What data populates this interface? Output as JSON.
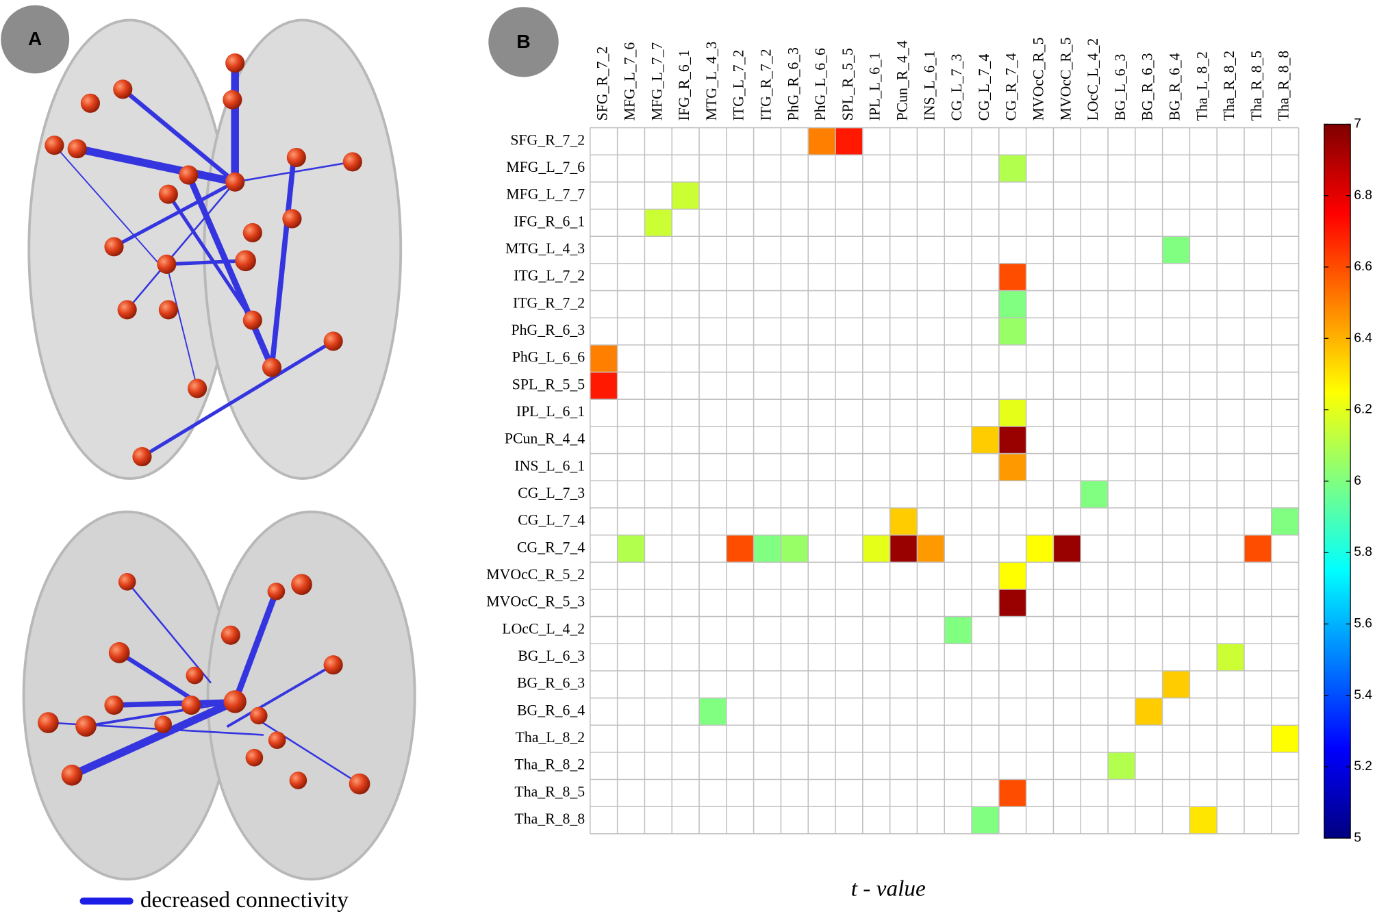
{
  "chart_data": {
    "type": "heatmap",
    "panel_labels": [
      "A",
      "B"
    ],
    "legend_label": "decreased connectivity",
    "x_label": "t - value",
    "colormap": "jet",
    "rows": [
      "SFG_R_7_2",
      "MFG_L_7_6",
      "MFG_L_7_7",
      "IFG_R_6_1",
      "MTG_L_4_3",
      "ITG_L_7_2",
      "ITG_R_7_2",
      "PhG_R_6_3",
      "PhG_L_6_6",
      "SPL_R_5_5",
      "IPL_L_6_1",
      "PCun_R_4_4",
      "INS_L_6_1",
      "CG_L_7_3",
      "CG_L_7_4",
      "CG_R_7_4",
      "MVOcC_R_5_2",
      "MVOcC_R_5_3",
      "LOcC_L_4_2",
      "BG_L_6_3",
      "BG_R_6_3",
      "BG_R_6_4",
      "Tha_L_8_2",
      "Tha_R_8_2",
      "Tha_R_8_5",
      "Tha_R_8_8"
    ],
    "columns": [
      "SFG_R_7_2",
      "MFG_L_7_6",
      "MFG_L_7_7",
      "IFG_R_6_1",
      "MTG_L_4_3",
      "ITG_L_7_2",
      "ITG_R_7_2",
      "PhG_R_6_3",
      "PhG_L_6_6",
      "SPL_R_5_5",
      "IPL_L_6_1",
      "PCun_R_4_4",
      "INS_L_6_1",
      "CG_L_7_3",
      "CG_L_7_4",
      "CG_R_7_4",
      "MVOcC_R_5",
      "MVOcC_R_5",
      "LOcC_L_4_2",
      "BG_L_6_3",
      "BG_R_6_3",
      "BG_R_6_4",
      "Tha_L_8_2",
      "Tha_R_8_2",
      "Tha_R_8_5",
      "Tha_R_8_8"
    ],
    "values": [
      [
        null,
        null,
        null,
        null,
        null,
        null,
        null,
        null,
        6.5,
        6.7,
        null,
        null,
        null,
        null,
        null,
        null,
        null,
        null,
        null,
        null,
        null,
        null,
        null,
        null,
        null,
        null
      ],
      [
        null,
        null,
        null,
        null,
        null,
        null,
        null,
        null,
        null,
        null,
        null,
        null,
        null,
        null,
        null,
        6.1,
        null,
        null,
        null,
        null,
        null,
        null,
        null,
        null,
        null,
        null
      ],
      [
        null,
        null,
        null,
        6.15,
        null,
        null,
        null,
        null,
        null,
        null,
        null,
        null,
        null,
        null,
        null,
        null,
        null,
        null,
        null,
        null,
        null,
        null,
        null,
        null,
        null,
        null
      ],
      [
        null,
        null,
        6.15,
        null,
        null,
        null,
        null,
        null,
        null,
        null,
        null,
        null,
        null,
        null,
        null,
        null,
        null,
        null,
        null,
        null,
        null,
        null,
        null,
        null,
        null,
        null
      ],
      [
        null,
        null,
        null,
        null,
        null,
        null,
        null,
        null,
        null,
        null,
        null,
        null,
        null,
        null,
        null,
        null,
        null,
        null,
        null,
        null,
        null,
        6.0,
        null,
        null,
        null,
        null
      ],
      [
        null,
        null,
        null,
        null,
        null,
        null,
        null,
        null,
        null,
        null,
        null,
        null,
        null,
        null,
        null,
        6.6,
        null,
        null,
        null,
        null,
        null,
        null,
        null,
        null,
        null,
        null
      ],
      [
        null,
        null,
        null,
        null,
        null,
        null,
        null,
        null,
        null,
        null,
        null,
        null,
        null,
        null,
        null,
        6.0,
        null,
        null,
        null,
        null,
        null,
        null,
        null,
        null,
        null,
        null
      ],
      [
        null,
        null,
        null,
        null,
        null,
        null,
        null,
        null,
        null,
        null,
        null,
        null,
        null,
        null,
        null,
        6.05,
        null,
        null,
        null,
        null,
        null,
        null,
        null,
        null,
        null,
        null
      ],
      [
        6.5,
        null,
        null,
        null,
        null,
        null,
        null,
        null,
        null,
        null,
        null,
        null,
        null,
        null,
        null,
        null,
        null,
        null,
        null,
        null,
        null,
        null,
        null,
        null,
        null,
        null
      ],
      [
        6.7,
        null,
        null,
        null,
        null,
        null,
        null,
        null,
        null,
        null,
        null,
        null,
        null,
        null,
        null,
        null,
        null,
        null,
        null,
        null,
        null,
        null,
        null,
        null,
        null,
        null
      ],
      [
        null,
        null,
        null,
        null,
        null,
        null,
        null,
        null,
        null,
        null,
        null,
        null,
        null,
        null,
        null,
        6.2,
        null,
        null,
        null,
        null,
        null,
        null,
        null,
        null,
        null,
        null
      ],
      [
        null,
        null,
        null,
        null,
        null,
        null,
        null,
        null,
        null,
        null,
        null,
        null,
        null,
        null,
        6.35,
        6.95,
        null,
        null,
        null,
        null,
        null,
        null,
        null,
        null,
        null,
        null
      ],
      [
        null,
        null,
        null,
        null,
        null,
        null,
        null,
        null,
        null,
        null,
        null,
        null,
        null,
        null,
        null,
        6.45,
        null,
        null,
        null,
        null,
        null,
        null,
        null,
        null,
        null,
        null
      ],
      [
        null,
        null,
        null,
        null,
        null,
        null,
        null,
        null,
        null,
        null,
        null,
        null,
        null,
        null,
        null,
        null,
        null,
        null,
        6.0,
        null,
        null,
        null,
        null,
        null,
        null,
        null
      ],
      [
        null,
        null,
        null,
        null,
        null,
        null,
        null,
        null,
        null,
        null,
        null,
        6.35,
        null,
        null,
        null,
        null,
        null,
        null,
        null,
        null,
        null,
        null,
        null,
        null,
        null,
        6.0
      ],
      [
        null,
        6.1,
        null,
        null,
        null,
        6.6,
        6.0,
        6.05,
        null,
        null,
        6.2,
        6.95,
        6.45,
        null,
        null,
        null,
        6.25,
        6.95,
        null,
        null,
        null,
        null,
        null,
        null,
        6.6,
        null
      ],
      [
        null,
        null,
        null,
        null,
        null,
        null,
        null,
        null,
        null,
        null,
        null,
        null,
        null,
        null,
        null,
        6.25,
        null,
        null,
        null,
        null,
        null,
        null,
        null,
        null,
        null,
        null
      ],
      [
        null,
        null,
        null,
        null,
        null,
        null,
        null,
        null,
        null,
        null,
        null,
        null,
        null,
        null,
        null,
        6.95,
        null,
        null,
        null,
        null,
        null,
        null,
        null,
        null,
        null,
        null
      ],
      [
        null,
        null,
        null,
        null,
        null,
        null,
        null,
        null,
        null,
        null,
        null,
        null,
        null,
        6.0,
        null,
        null,
        null,
        null,
        null,
        null,
        null,
        null,
        null,
        null,
        null,
        null
      ],
      [
        null,
        null,
        null,
        null,
        null,
        null,
        null,
        null,
        null,
        null,
        null,
        null,
        null,
        null,
        null,
        null,
        null,
        null,
        null,
        null,
        null,
        null,
        null,
        6.15,
        null,
        null
      ],
      [
        null,
        null,
        null,
        null,
        null,
        null,
        null,
        null,
        null,
        null,
        null,
        null,
        null,
        null,
        null,
        null,
        null,
        null,
        null,
        null,
        null,
        6.35,
        null,
        null,
        null,
        null
      ],
      [
        null,
        null,
        null,
        null,
        6.0,
        null,
        null,
        null,
        null,
        null,
        null,
        null,
        null,
        null,
        null,
        null,
        null,
        null,
        null,
        null,
        6.35,
        null,
        null,
        null,
        null,
        null
      ],
      [
        null,
        null,
        null,
        null,
        null,
        null,
        null,
        null,
        null,
        null,
        null,
        null,
        null,
        null,
        null,
        null,
        null,
        null,
        null,
        null,
        null,
        null,
        null,
        null,
        null,
        6.25
      ],
      [
        null,
        null,
        null,
        null,
        null,
        null,
        null,
        null,
        null,
        null,
        null,
        null,
        null,
        null,
        null,
        null,
        null,
        null,
        null,
        6.1,
        null,
        null,
        null,
        null,
        null,
        null
      ],
      [
        null,
        null,
        null,
        null,
        null,
        null,
        null,
        null,
        null,
        null,
        null,
        null,
        null,
        null,
        null,
        6.6,
        null,
        null,
        null,
        null,
        null,
        null,
        null,
        null,
        null,
        null
      ],
      [
        null,
        null,
        null,
        null,
        null,
        null,
        null,
        null,
        null,
        null,
        null,
        null,
        null,
        null,
        6.0,
        null,
        null,
        null,
        null,
        null,
        null,
        null,
        6.3,
        null,
        null,
        null
      ]
    ],
    "zlim": [
      5,
      7
    ],
    "zticks": [
      5,
      5.2,
      5.4,
      5.6,
      5.8,
      6,
      6.2,
      6.4,
      6.6,
      6.8,
      7
    ]
  }
}
